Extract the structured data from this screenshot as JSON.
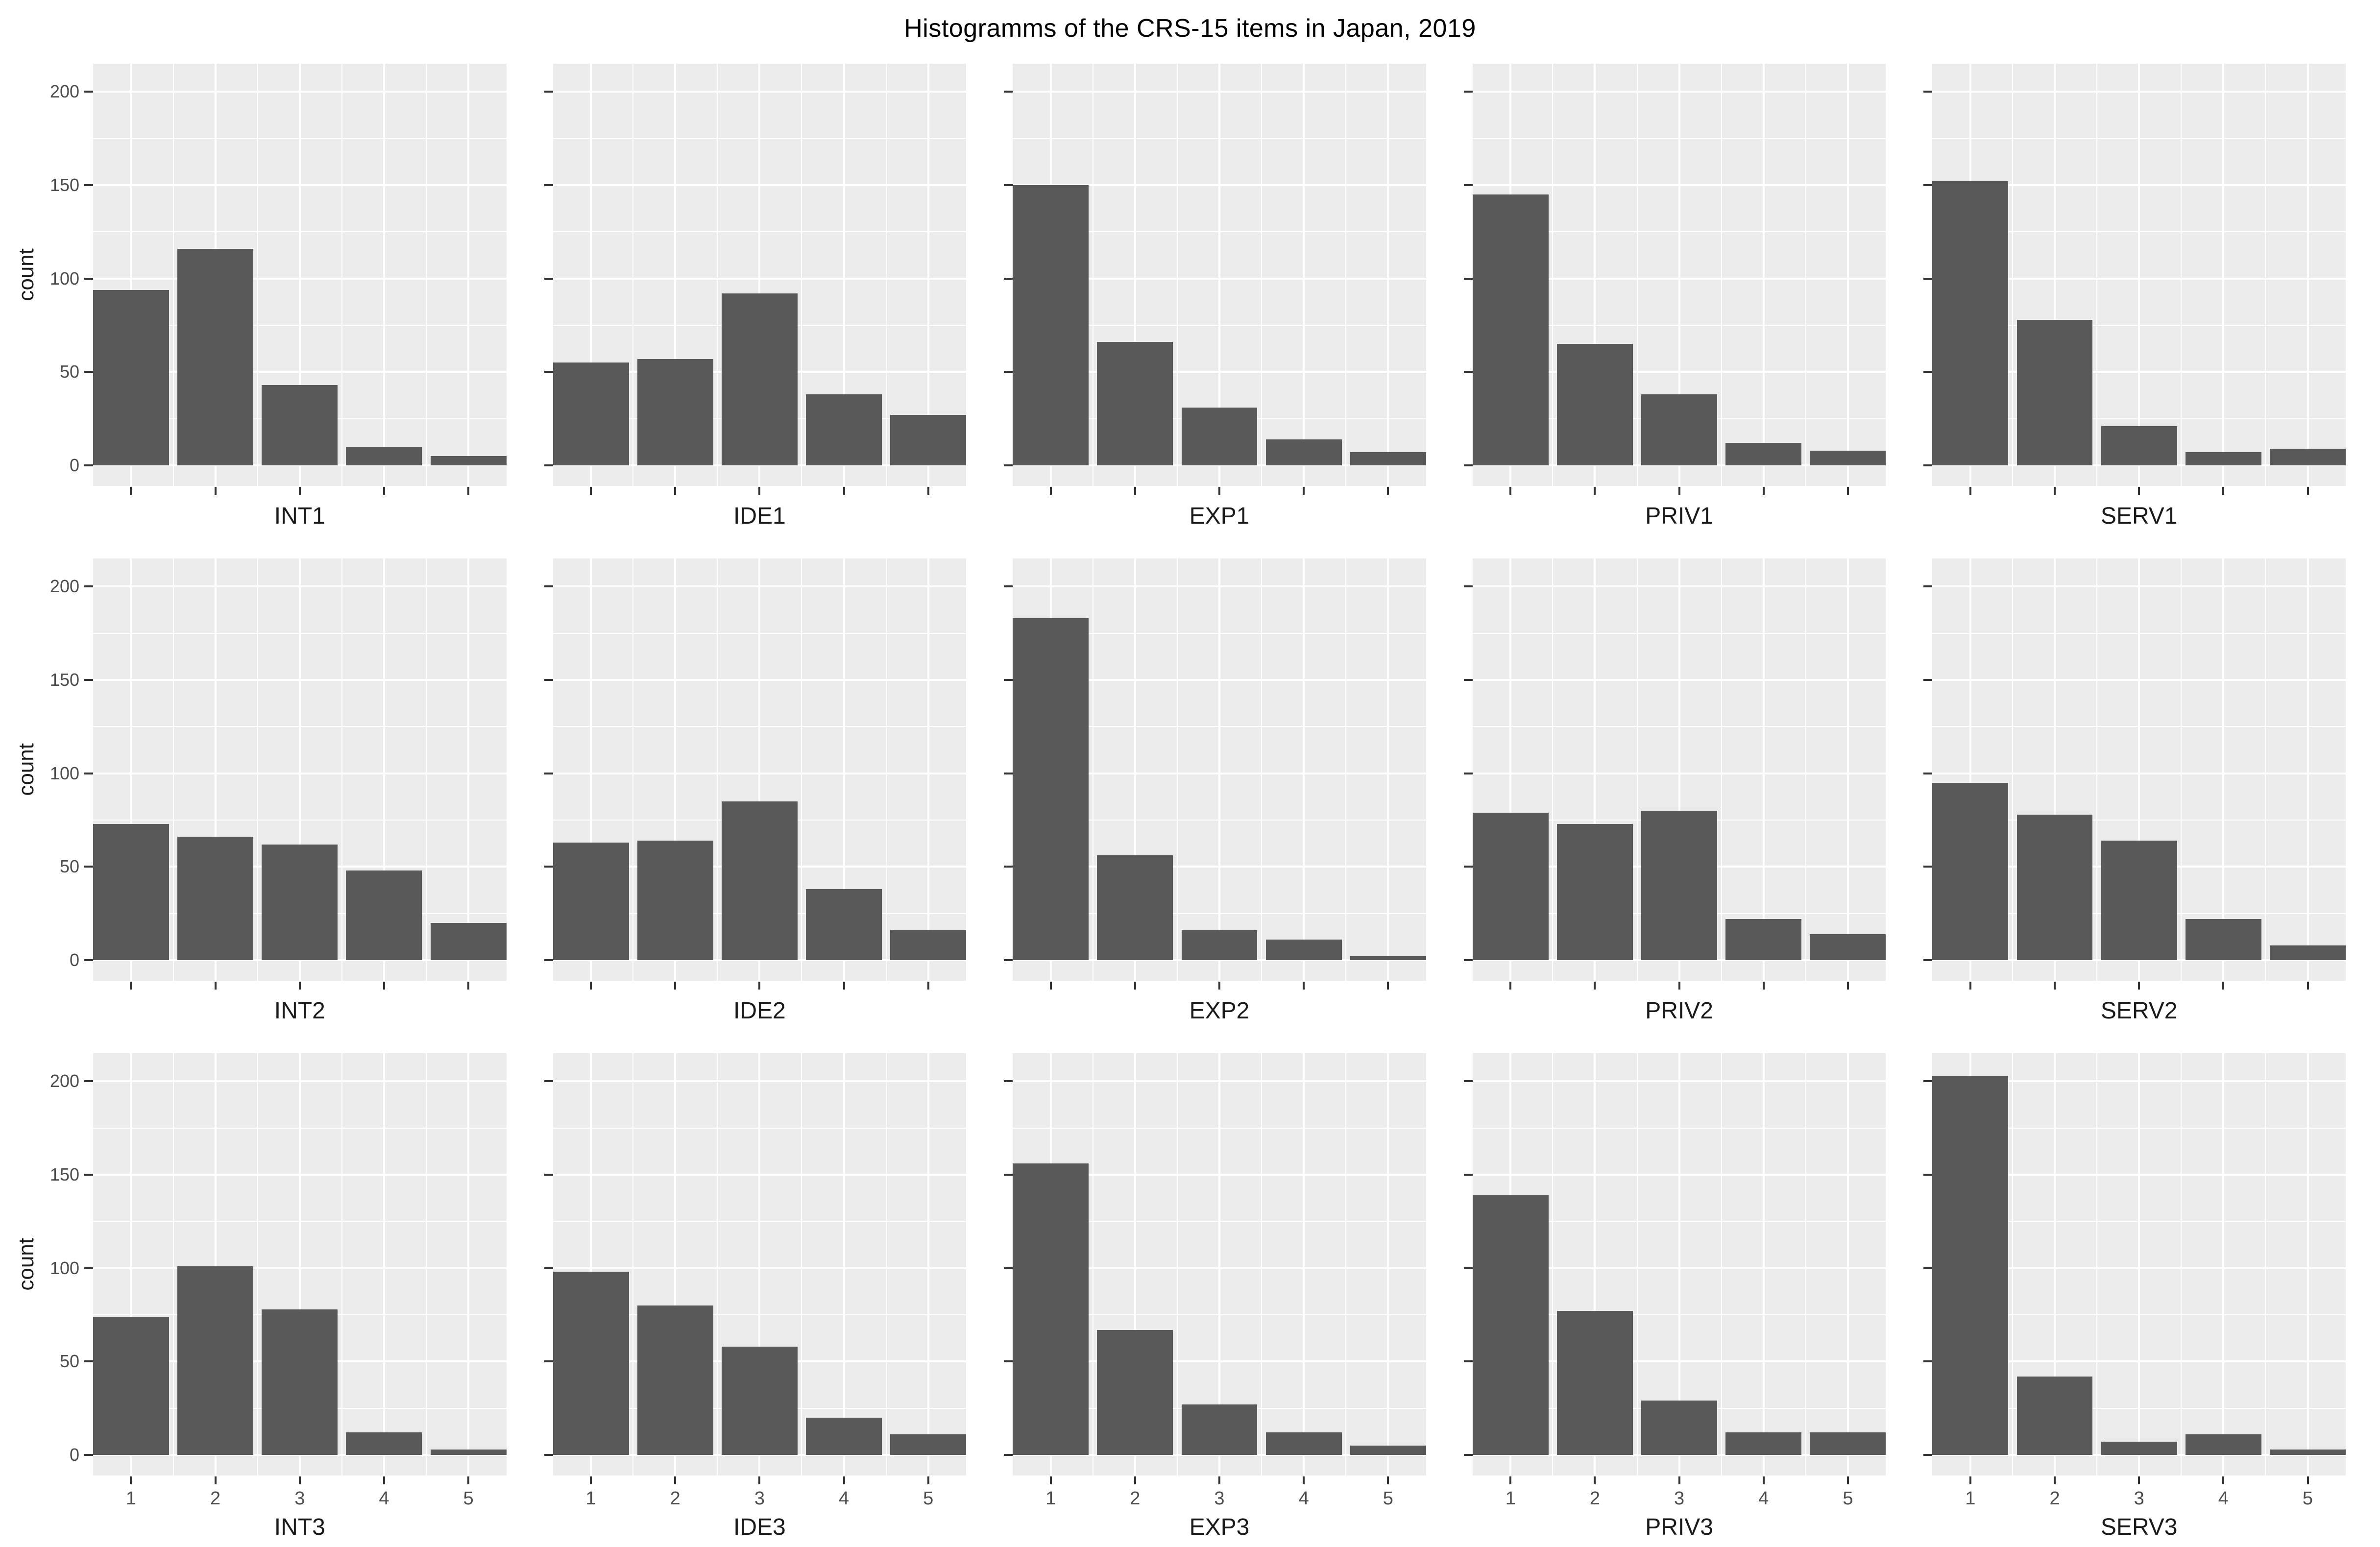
{
  "title": "Histogramms of the CRS-15 items in Japan, 2019",
  "chart_data": {
    "type": "bar",
    "subtype": "faceted-histogram",
    "title": "Histogramms of the CRS-15 items in Japan, 2019",
    "xlabel": "",
    "ylabel": "count",
    "categories": [
      "1",
      "2",
      "3",
      "4",
      "5"
    ],
    "yticks": [
      0,
      50,
      100,
      150,
      200
    ],
    "yminor": [
      25,
      75,
      125,
      175
    ],
    "ylim": [
      -11,
      215
    ],
    "grid": "white major+minor gridlines on grey panel",
    "legend_position": "none",
    "layout": {
      "rows": 3,
      "cols": 5,
      "x_tick_labels": "bottom row only",
      "y_tick_labels": "left column only"
    },
    "facets": [
      {
        "label": "INT1",
        "values": [
          94,
          116,
          43,
          10,
          5
        ]
      },
      {
        "label": "IDE1",
        "values": [
          55,
          57,
          92,
          38,
          27
        ]
      },
      {
        "label": "EXP1",
        "values": [
          150,
          66,
          31,
          14,
          7
        ]
      },
      {
        "label": "PRIV1",
        "values": [
          145,
          65,
          38,
          12,
          8
        ]
      },
      {
        "label": "SERV1",
        "values": [
          152,
          78,
          21,
          7,
          9
        ]
      },
      {
        "label": "INT2",
        "values": [
          73,
          66,
          62,
          48,
          20
        ]
      },
      {
        "label": "IDE2",
        "values": [
          63,
          64,
          85,
          38,
          16
        ]
      },
      {
        "label": "EXP2",
        "values": [
          183,
          56,
          16,
          11,
          2
        ]
      },
      {
        "label": "PRIV2",
        "values": [
          79,
          73,
          80,
          22,
          14
        ]
      },
      {
        "label": "SERV2",
        "values": [
          95,
          78,
          64,
          22,
          8
        ]
      },
      {
        "label": "INT3",
        "values": [
          74,
          101,
          78,
          12,
          3
        ]
      },
      {
        "label": "IDE3",
        "values": [
          98,
          80,
          58,
          20,
          11
        ]
      },
      {
        "label": "EXP3",
        "values": [
          156,
          67,
          27,
          12,
          5
        ]
      },
      {
        "label": "PRIV3",
        "values": [
          139,
          77,
          29,
          12,
          12
        ]
      },
      {
        "label": "SERV3",
        "values": [
          203,
          42,
          7,
          11,
          3
        ]
      }
    ]
  },
  "colors": {
    "bar": "#595959",
    "panel_bg": "#EBEBEB",
    "gridline": "#FFFFFF",
    "tick": "#333333",
    "tick_label": "#4D4D4D",
    "facet_label": "#1A1A1A",
    "title": "#000000",
    "background": "#FFFFFF"
  }
}
